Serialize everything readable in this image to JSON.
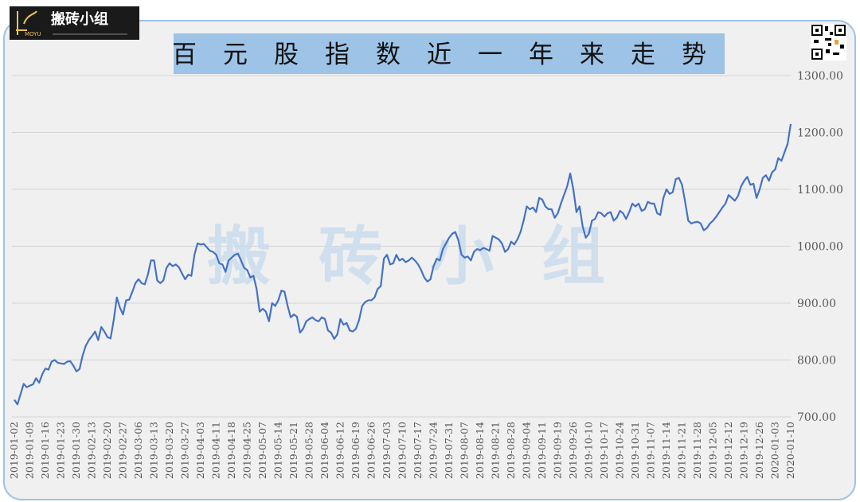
{
  "logo": {
    "text": "搬砖小组",
    "sub": "MOYU"
  },
  "watermark": "搬砖小组",
  "chart_data": {
    "type": "line",
    "title": "百元股指数近一年来走势",
    "color": "#4472c4",
    "grid": true,
    "ylim": [
      700,
      1300
    ],
    "yticks": [
      {
        "value": 700,
        "label": "700.00"
      },
      {
        "value": 800,
        "label": "800.00"
      },
      {
        "value": 900,
        "label": "900.00"
      },
      {
        "value": 1000,
        "label": "1000.00"
      },
      {
        "value": 1100,
        "label": "1100.00"
      },
      {
        "value": 1200,
        "label": "1200.00"
      },
      {
        "value": 1300,
        "label": "1300.00"
      }
    ],
    "categories": [
      "2019-01-02",
      null,
      null,
      null,
      null,
      "2019-01-09",
      null,
      null,
      null,
      null,
      "2019-01-16",
      null,
      null,
      null,
      null,
      "2019-01-23",
      null,
      null,
      null,
      null,
      "2019-01-30",
      null,
      null,
      null,
      null,
      "2019-02-13",
      null,
      null,
      null,
      null,
      "2019-02-20",
      null,
      null,
      null,
      null,
      "2019-02-27",
      null,
      null,
      null,
      null,
      "2019-03-06",
      null,
      null,
      null,
      null,
      "2019-03-13",
      null,
      null,
      null,
      null,
      "2019-03-20",
      null,
      null,
      null,
      null,
      "2019-03-27",
      null,
      null,
      null,
      null,
      "2019-04-03",
      null,
      null,
      null,
      null,
      "2019-04-11",
      null,
      null,
      null,
      null,
      "2019-04-18",
      null,
      null,
      null,
      null,
      "2019-04-25",
      null,
      null,
      null,
      null,
      "2019-05-07",
      null,
      null,
      null,
      null,
      "2019-05-14",
      null,
      null,
      null,
      null,
      "2019-05-21",
      null,
      null,
      null,
      null,
      "2019-05-28",
      null,
      null,
      null,
      null,
      "2019-06-04",
      null,
      null,
      null,
      null,
      "2019-06-12",
      null,
      null,
      null,
      null,
      "2019-06-19",
      null,
      null,
      null,
      null,
      "2019-06-26",
      null,
      null,
      null,
      null,
      "2019-07-03",
      null,
      null,
      null,
      null,
      "2019-07-10",
      null,
      null,
      null,
      null,
      "2019-07-17",
      null,
      null,
      null,
      null,
      "2019-07-24",
      null,
      null,
      null,
      null,
      "2019-07-31",
      null,
      null,
      null,
      null,
      "2019-08-07",
      null,
      null,
      null,
      null,
      "2019-08-14",
      null,
      null,
      null,
      null,
      "2019-08-21",
      null,
      null,
      null,
      null,
      "2019-08-28",
      null,
      null,
      null,
      null,
      "2019-09-04",
      null,
      null,
      null,
      null,
      "2019-09-11",
      null,
      null,
      null,
      null,
      "2019-09-19",
      null,
      null,
      null,
      null,
      "2019-09-26",
      null,
      null,
      null,
      null,
      "2019-10-10",
      null,
      null,
      null,
      null,
      "2019-10-17",
      null,
      null,
      null,
      null,
      "2019-10-24",
      null,
      null,
      null,
      null,
      "2019-10-31",
      null,
      null,
      null,
      null,
      "2019-11-07",
      null,
      null,
      null,
      null,
      "2019-11-14",
      null,
      null,
      null,
      null,
      "2019-11-21",
      null,
      null,
      null,
      null,
      "2019-11-28",
      null,
      null,
      null,
      null,
      "2019-12-05",
      null,
      null,
      null,
      null,
      "2019-12-12",
      null,
      null,
      null,
      null,
      "2019-12-19",
      null,
      null,
      null,
      null,
      "2019-12-26",
      null,
      null,
      null,
      null,
      "2020-01-03",
      null,
      null,
      null,
      null,
      "2020-01-10"
    ],
    "values": [
      730,
      722,
      740,
      758,
      752,
      755,
      757,
      768,
      760,
      775,
      785,
      783,
      797,
      800,
      795,
      794,
      793,
      797,
      798,
      790,
      780,
      784,
      808,
      825,
      835,
      842,
      850,
      835,
      858,
      850,
      840,
      838,
      870,
      910,
      892,
      880,
      905,
      906,
      920,
      935,
      942,
      935,
      933,
      950,
      975,
      975,
      940,
      935,
      940,
      962,
      970,
      965,
      968,
      963,
      952,
      942,
      950,
      948,
      985,
      1005,
      1003,
      1004,
      998,
      992,
      990,
      985,
      970,
      968,
      955,
      975,
      980,
      985,
      987,
      975,
      962,
      958,
      945,
      948,
      925,
      885,
      890,
      885,
      868,
      900,
      895,
      905,
      922,
      920,
      895,
      875,
      880,
      876,
      848,
      855,
      868,
      872,
      875,
      870,
      868,
      875,
      872,
      852,
      848,
      837,
      845,
      872,
      862,
      865,
      852,
      850,
      855,
      870,
      895,
      902,
      905,
      905,
      910,
      925,
      930,
      978,
      985,
      968,
      970,
      985,
      975,
      978,
      972,
      975,
      980,
      975,
      968,
      958,
      945,
      938,
      942,
      965,
      978,
      975,
      995,
      1005,
      1015,
      1022,
      1025,
      1010,
      985,
      980,
      982,
      975,
      990,
      995,
      993,
      997,
      995,
      992,
      1018,
      1015,
      1012,
      1005,
      990,
      995,
      1008,
      1003,
      1012,
      1025,
      1045,
      1070,
      1065,
      1068,
      1060,
      1085,
      1082,
      1070,
      1065,
      1065,
      1050,
      1058,
      1075,
      1090,
      1105,
      1128,
      1100,
      1060,
      1070,
      1035,
      1015,
      1022,
      1045,
      1048,
      1060,
      1058,
      1052,
      1058,
      1060,
      1045,
      1050,
      1062,
      1058,
      1048,
      1060,
      1075,
      1070,
      1075,
      1062,
      1065,
      1078,
      1075,
      1075,
      1058,
      1055,
      1085,
      1100,
      1092,
      1095,
      1118,
      1120,
      1108,
      1078,
      1045,
      1040,
      1042,
      1043,
      1040,
      1028,
      1032,
      1040,
      1045,
      1052,
      1060,
      1068,
      1075,
      1090,
      1085,
      1080,
      1088,
      1105,
      1115,
      1122,
      1108,
      1110,
      1085,
      1100,
      1120,
      1125,
      1115,
      1130,
      1135,
      1155,
      1150,
      1165,
      1180,
      1215
    ]
  }
}
